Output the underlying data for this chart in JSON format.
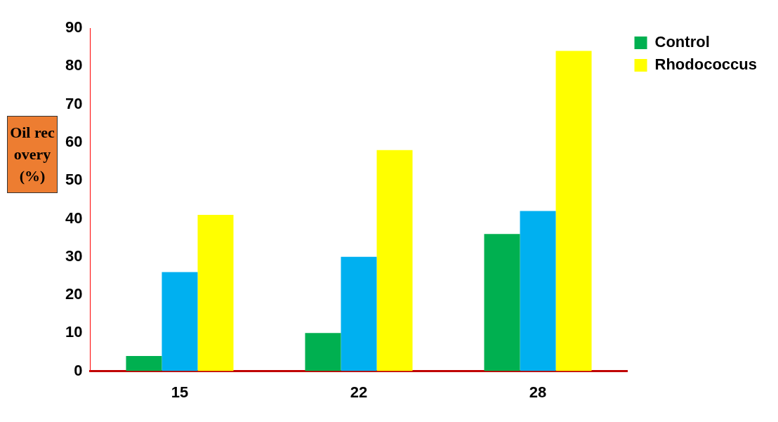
{
  "chart_data": {
    "type": "bar",
    "ylabel": "Oil recovery (%)",
    "categories": [
      "15",
      "22",
      "28"
    ],
    "series": [
      {
        "name": "Control",
        "color": "#00b050",
        "values": [
          4,
          10,
          36
        ]
      },
      {
        "color": "#00b0f0",
        "values": [
          26,
          30,
          42
        ]
      },
      {
        "name": "Rhodococcus",
        "color": "#ffff00",
        "values": [
          41,
          58,
          84
        ]
      }
    ],
    "ylim": [
      0,
      90
    ],
    "yticks": [
      0,
      10,
      20,
      30,
      40,
      50,
      60,
      70,
      80,
      90
    ],
    "grid": false,
    "legend": "top right"
  }
}
